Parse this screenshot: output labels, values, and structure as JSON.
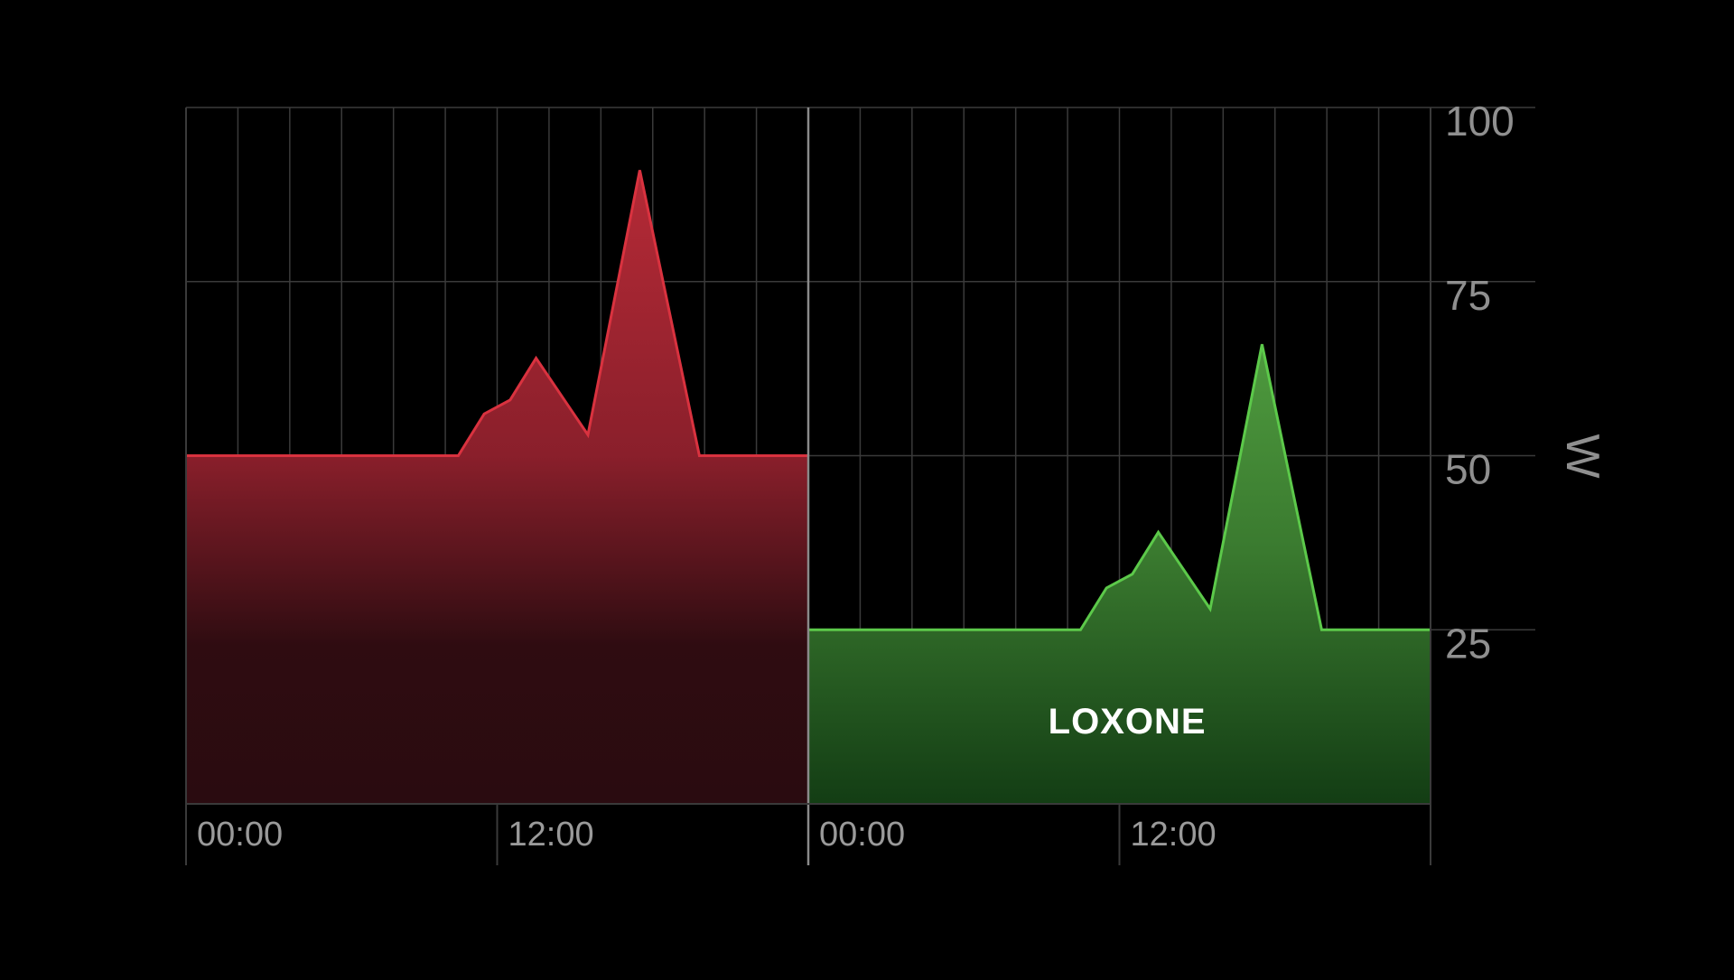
{
  "chart_data": {
    "type": "area",
    "x_tick_labels": [
      "00:00",
      "12:00",
      "00:00",
      "12:00"
    ],
    "y_ticks": [
      25,
      50,
      75,
      100
    ],
    "ylim": [
      0,
      100
    ],
    "y_unit": "W",
    "grid": true,
    "x_unit_hours": true,
    "series": [
      {
        "color": "#d9323f",
        "day": 1,
        "points": [
          [
            0,
            50
          ],
          [
            10.5,
            50
          ],
          [
            11.5,
            56
          ],
          [
            12.5,
            58
          ],
          [
            13.5,
            64
          ],
          [
            15.5,
            53
          ],
          [
            17.5,
            91
          ],
          [
            19.8,
            50
          ],
          [
            24,
            50
          ]
        ]
      },
      {
        "color": "#4db33d",
        "day": 2,
        "points": [
          [
            24,
            25
          ],
          [
            34.5,
            25
          ],
          [
            35.5,
            31
          ],
          [
            36.5,
            33
          ],
          [
            37.5,
            39
          ],
          [
            39.5,
            28
          ],
          [
            41.5,
            66
          ],
          [
            43.8,
            25
          ],
          [
            48,
            25
          ]
        ]
      }
    ],
    "logo": "LOXONE",
    "colors": {
      "background": "#000000",
      "grid": "#3a3a3a",
      "red_line": "#d9323f",
      "green_line": "#5cc94a"
    }
  }
}
